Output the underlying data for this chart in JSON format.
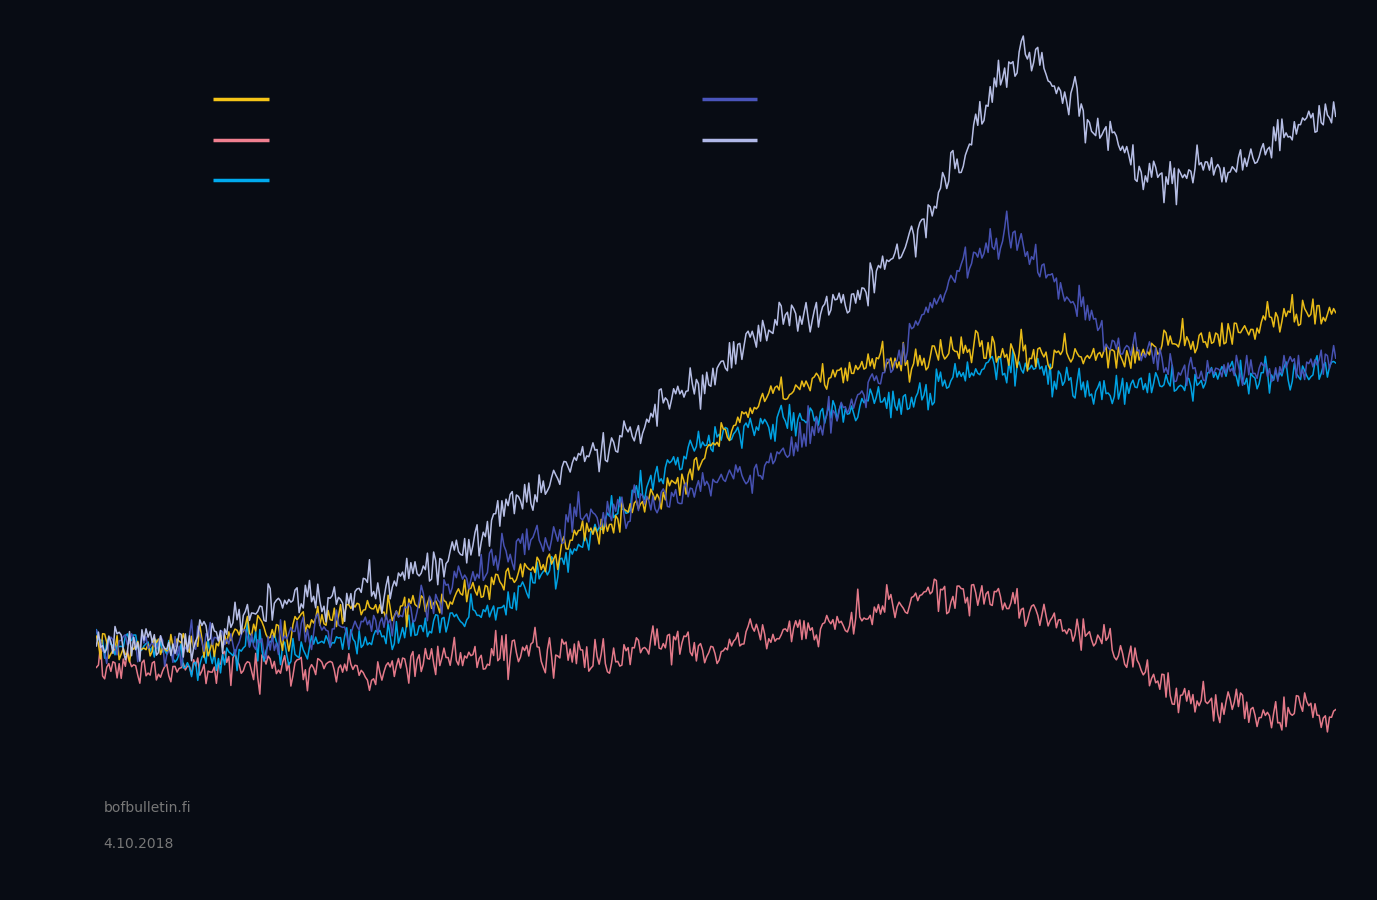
{
  "background_color": "#080c14",
  "plot_bg_color": "#080c14",
  "text_color": "#cccccc",
  "watermark_line1": "bofbulletin.fi",
  "watermark_line2": "4.10.2018",
  "watermark_color": "#777777",
  "legend_left": [
    {
      "color": "#f5c518"
    },
    {
      "color": "#f08090"
    },
    {
      "color": "#00aaee"
    }
  ],
  "legend_right": [
    {
      "color": "#4a55bb"
    },
    {
      "color": "#b0b8e8"
    }
  ],
  "line_colors": {
    "em_composite": "#c0c8f0",
    "russia": "#4a55bb",
    "india": "#00aaee",
    "china": "#f5c518",
    "brazil": "#f08090"
  }
}
